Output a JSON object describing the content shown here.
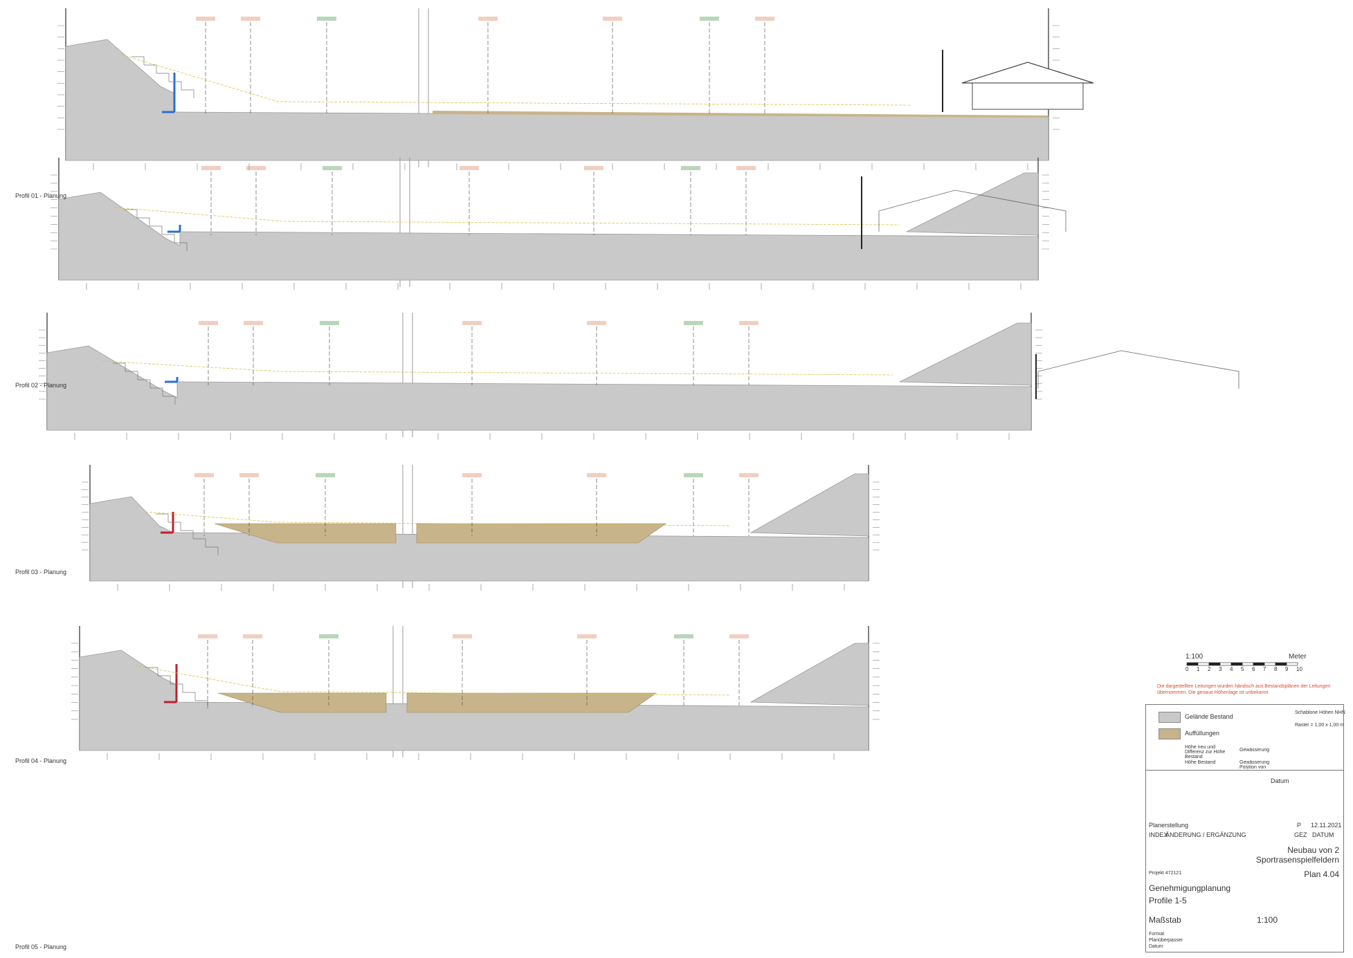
{
  "profiles": [
    {
      "label": "Profil 01 - Planung"
    },
    {
      "label": "Profil 02 - Planung"
    },
    {
      "label": "Profil 03 - Planung"
    },
    {
      "label": "Profil 04 - Planung"
    },
    {
      "label": "Profil 05 - Planung"
    }
  ],
  "scale_bar": {
    "title": "1:100",
    "unit": "Meter",
    "ticks": [
      "0",
      "1",
      "2",
      "3",
      "4",
      "5",
      "6",
      "7",
      "8",
      "9",
      "10"
    ]
  },
  "legend": {
    "existing_terrain": "Gelände Bestand",
    "fill": "Auffüllungen",
    "height_difference": "Höhe neu und Differenz zur Höhe Bestand",
    "existing_height": "Höhe Bestand",
    "dewatering": "Gewässerung",
    "dewatering_note": "Gewässerung Position von Verlegung",
    "template_height": "Schablone Höhen NHN",
    "grid": "Raster = 1,00 x 1,00 m"
  },
  "title_block": {
    "note": "Die dargestellten Leitungen wurden händisch aus Bestandsplänen der Leitungen übernommen. Die genaue Höhenlage ist unbekannt.",
    "index_label": "INDEX",
    "change_label": "ÄNDERUNG / ERGÄNZUNG",
    "gez_label": "GEZ",
    "date_label": "DATUM",
    "row1_text": "Planerstellung",
    "row1_by": "P",
    "row1_date": "12.11.2021",
    "datum_label": "Datum",
    "project_title_1": "Neubau von 2",
    "project_title_2": "Sportrasenspielfeldern",
    "project_no": "Projekt 472121",
    "plan_no": "Plan 4.04",
    "phase": "Genehmigungplanung",
    "subtitle": "Profile 1-5",
    "scale_label": "Maßstab",
    "scale_value": "1:100",
    "format_label": "Format",
    "format_value": "Planüberpasser",
    "pdf_label": "Datum"
  },
  "colors": {
    "terrain": "#c9c9c9",
    "fill": "#c8b48a",
    "wall_blue": "#2a6fd0",
    "wall_red": "#c0202a",
    "annotation_red": "#d8754a",
    "annotation_green": "#3a8a3a"
  }
}
